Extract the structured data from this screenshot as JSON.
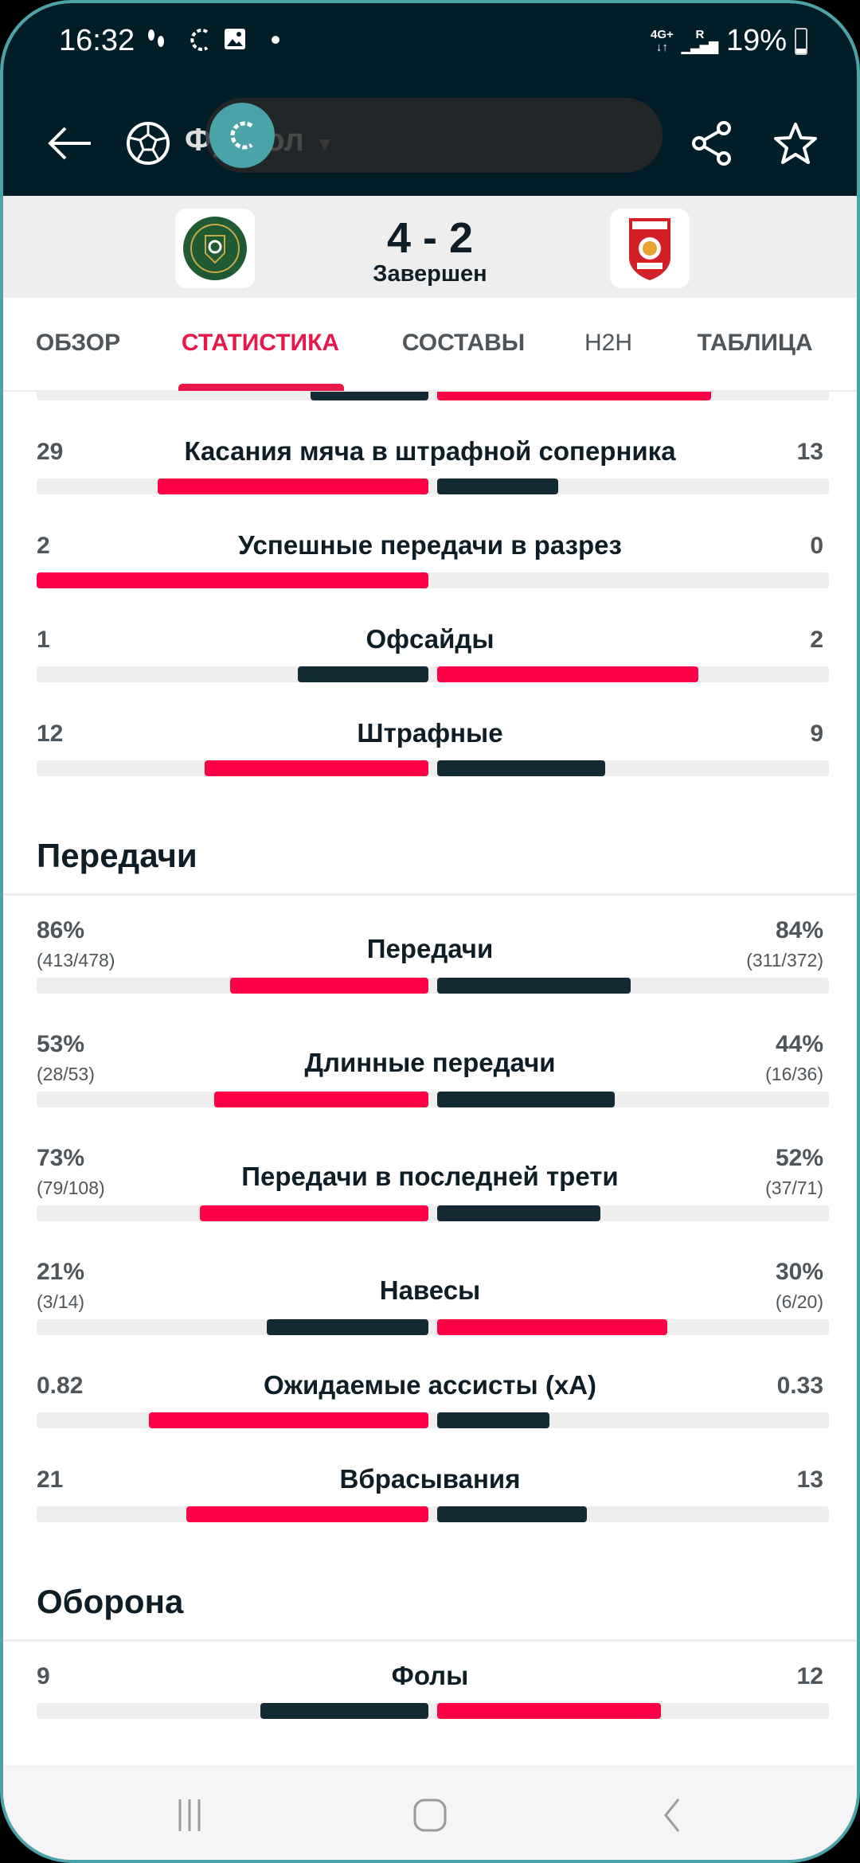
{
  "status_bar": {
    "time": "16:32",
    "network": "4G+",
    "roaming": "R",
    "battery": "19%"
  },
  "toolbar": {
    "sport": "Футбол",
    "back_icon": "arrow-left-icon",
    "sport_icon": "soccer-ball-icon",
    "share_icon": "share-icon",
    "favorite_icon": "star-icon"
  },
  "match": {
    "score": "4 - 2",
    "status": "Завершен",
    "home_logo": "Greentown FC Zhejiang",
    "away_logo": "Changchun Yatai Football Club 1996"
  },
  "tabs": [
    {
      "label": "ОБЗОР"
    },
    {
      "label": "СТАТИСТИКА",
      "active": true
    },
    {
      "label": "СОСТАВЫ"
    },
    {
      "label": "H2H"
    },
    {
      "label": "ТАБЛИЦА"
    }
  ],
  "colors": {
    "higher": "#ff0046",
    "lower": "#132a35",
    "track": "#eeeeee",
    "accent": "#e8174a"
  },
  "partial_top_bar": {
    "left_fraction": 0.3,
    "right_fraction": 0.7
  },
  "stats_top": [
    {
      "title": "Касания мяча в штрафной соперника",
      "home": "29",
      "away": "13",
      "hv": 29,
      "av": 13
    },
    {
      "title": "Успешные передачи в разрез",
      "home": "2",
      "away": "0",
      "hv": 2,
      "av": 0
    },
    {
      "title": "Офсайды",
      "home": "1",
      "away": "2",
      "hv": 1,
      "av": 2
    },
    {
      "title": "Штрафные",
      "home": "12",
      "away": "9",
      "hv": 12,
      "av": 9
    }
  ],
  "passes": {
    "heading": "Передачи",
    "rows": [
      {
        "title": "Передачи",
        "home": "86%",
        "home_sub": "(413/478)",
        "away": "84%",
        "away_sub": "(311/372)",
        "hv": 86,
        "av": 84
      },
      {
        "title": "Длинные передачи",
        "home": "53%",
        "home_sub": "(28/53)",
        "away": "44%",
        "away_sub": "(16/36)",
        "hv": 53,
        "av": 44
      },
      {
        "title": "Передачи в последней трети",
        "home": "73%",
        "home_sub": "(79/108)",
        "away": "52%",
        "away_sub": "(37/71)",
        "hv": 73,
        "av": 52
      },
      {
        "title": "Навесы",
        "home": "21%",
        "home_sub": "(3/14)",
        "away": "30%",
        "away_sub": "(6/20)",
        "hv": 21,
        "av": 30
      }
    ],
    "simple": [
      {
        "title": "Ожидаемые ассисты (xA)",
        "home": "0.82",
        "away": "0.33",
        "hv": 0.82,
        "av": 0.33
      },
      {
        "title": "Вбрасывания",
        "home": "21",
        "away": "13",
        "hv": 21,
        "av": 13
      }
    ]
  },
  "defense": {
    "heading": "Оборона",
    "rows": [
      {
        "title": "Фолы",
        "home": "9",
        "away": "12",
        "hv": 9,
        "av": 12
      }
    ]
  },
  "nav": {
    "recents_icon": "recent-apps-icon",
    "home_icon": "home-icon",
    "back_icon": "back-icon"
  }
}
